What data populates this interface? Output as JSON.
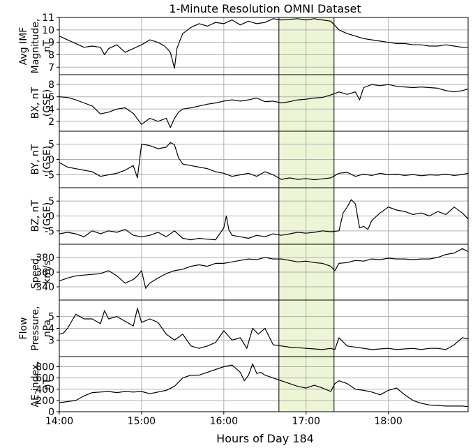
{
  "chart_data": {
    "type": "line",
    "title": "1-Minute Resolution OMNI Dataset",
    "xlabel": "Hours of Day 184",
    "xlim": [
      14.0,
      18.97
    ],
    "xticks": [
      14,
      15,
      16,
      17,
      18
    ],
    "xtick_labels": [
      "14:00",
      "15:00",
      "16:00",
      "17:00",
      "18:00"
    ],
    "grid": true,
    "highlight": {
      "x0": 16.67,
      "x1": 17.34,
      "color": "#eef5d6"
    },
    "panels": [
      {
        "ylabel": [
          "Avg IMF",
          "Magnitude,",
          "nT"
        ],
        "ylim": [
          6.4,
          11
        ],
        "yticks": [
          7,
          8,
          9,
          10,
          11
        ],
        "x": [
          14.0,
          14.1,
          14.2,
          14.3,
          14.4,
          14.5,
          14.55,
          14.6,
          14.7,
          14.8,
          14.9,
          15.0,
          15.1,
          15.2,
          15.28,
          15.35,
          15.4,
          15.43,
          15.47,
          15.5,
          15.6,
          15.7,
          15.8,
          15.9,
          16.0,
          16.1,
          16.2,
          16.3,
          16.4,
          16.5,
          16.6,
          16.7,
          16.8,
          16.9,
          17.0,
          17.1,
          17.2,
          17.3,
          17.4,
          17.5,
          17.6,
          17.7,
          17.8,
          17.9,
          18.0,
          18.1,
          18.2,
          18.3,
          18.4,
          18.5,
          18.6,
          18.7,
          18.8,
          18.9,
          18.97
        ],
        "y": [
          9.5,
          9.2,
          8.9,
          8.6,
          8.7,
          8.6,
          8.0,
          8.5,
          8.8,
          8.2,
          8.5,
          8.8,
          9.2,
          9.0,
          8.7,
          8.2,
          6.9,
          8.5,
          9.2,
          9.7,
          10.2,
          10.5,
          10.3,
          10.6,
          10.5,
          10.8,
          10.4,
          10.7,
          10.5,
          10.6,
          10.9,
          10.8,
          10.85,
          10.9,
          10.8,
          10.9,
          10.8,
          10.7,
          10.0,
          9.7,
          9.5,
          9.3,
          9.2,
          9.1,
          9.0,
          8.9,
          8.9,
          8.8,
          8.8,
          8.7,
          8.7,
          8.8,
          8.7,
          8.6,
          8.6
        ]
      },
      {
        "ylabel": [
          "BX, nT",
          "(GSE)"
        ],
        "ylim": [
          0.4,
          9.6
        ],
        "yticks": [
          2,
          4,
          6,
          8
        ],
        "x": [
          14.0,
          14.1,
          14.2,
          14.3,
          14.4,
          14.5,
          14.6,
          14.7,
          14.8,
          14.9,
          15.0,
          15.1,
          15.2,
          15.3,
          15.35,
          15.4,
          15.45,
          15.5,
          15.6,
          15.7,
          15.8,
          15.9,
          16.0,
          16.1,
          16.2,
          16.3,
          16.4,
          16.5,
          16.6,
          16.7,
          16.8,
          16.9,
          17.0,
          17.1,
          17.2,
          17.3,
          17.4,
          17.5,
          17.6,
          17.65,
          17.7,
          17.8,
          17.9,
          18.0,
          18.1,
          18.2,
          18.3,
          18.4,
          18.5,
          18.6,
          18.7,
          18.8,
          18.9,
          18.97
        ],
        "y": [
          6.0,
          5.9,
          5.5,
          5.0,
          4.5,
          3.2,
          3.5,
          4.0,
          4.2,
          3.3,
          1.5,
          2.5,
          2.0,
          2.5,
          1.0,
          2.5,
          3.5,
          4.0,
          4.2,
          4.5,
          4.8,
          5.0,
          5.3,
          5.5,
          5.3,
          5.5,
          5.8,
          5.2,
          5.3,
          5.0,
          5.2,
          5.5,
          5.6,
          5.8,
          5.9,
          6.3,
          6.8,
          6.4,
          6.8,
          5.5,
          7.5,
          8.0,
          7.8,
          8.0,
          7.7,
          7.6,
          7.5,
          7.6,
          7.5,
          7.4,
          7.0,
          6.8,
          7.0,
          7.3
        ]
      },
      {
        "ylabel": [
          "BY, nT",
          "(GSE)"
        ],
        "ylim": [
          -9.2,
          9.2
        ],
        "yticks": [
          -5,
          0,
          5
        ],
        "x": [
          14.0,
          14.1,
          14.2,
          14.3,
          14.4,
          14.5,
          14.6,
          14.7,
          14.8,
          14.9,
          14.95,
          15.0,
          15.1,
          15.2,
          15.3,
          15.35,
          15.4,
          15.45,
          15.5,
          15.6,
          15.7,
          15.8,
          15.9,
          16.0,
          16.1,
          16.2,
          16.3,
          16.4,
          16.5,
          16.6,
          16.7,
          16.8,
          16.9,
          17.0,
          17.1,
          17.2,
          17.3,
          17.4,
          17.5,
          17.6,
          17.7,
          17.8,
          17.9,
          18.0,
          18.1,
          18.2,
          18.3,
          18.4,
          18.5,
          18.6,
          18.7,
          18.8,
          18.9,
          18.97
        ],
        "y": [
          -1.0,
          -2.5,
          -3.0,
          -3.5,
          -4.0,
          -5.5,
          -5.0,
          -4.5,
          -3.5,
          -2.0,
          -6.0,
          5.0,
          4.5,
          3.5,
          4.0,
          5.5,
          4.8,
          0.5,
          -1.5,
          -2.0,
          -2.5,
          -3.0,
          -4.0,
          -4.5,
          -5.5,
          -5.0,
          -4.5,
          -5.5,
          -4.0,
          -5.0,
          -6.5,
          -6.0,
          -6.5,
          -6.2,
          -6.6,
          -6.3,
          -6.0,
          -4.5,
          -4.2,
          -5.5,
          -4.8,
          -5.2,
          -4.5,
          -5.0,
          -4.8,
          -5.2,
          -4.9,
          -5.3,
          -5.0,
          -5.1,
          -4.8,
          -5.2,
          -4.9,
          -4.5
        ]
      },
      {
        "ylabel": [
          "BZ, nT",
          "(GSE)"
        ],
        "ylim": [
          -9.5,
          9.5
        ],
        "yticks": [
          -5,
          0,
          5
        ],
        "x": [
          14.0,
          14.1,
          14.2,
          14.3,
          14.4,
          14.5,
          14.6,
          14.7,
          14.8,
          14.9,
          15.0,
          15.1,
          15.2,
          15.3,
          15.4,
          15.5,
          15.6,
          15.7,
          15.8,
          15.9,
          16.0,
          16.03,
          16.06,
          16.1,
          16.2,
          16.3,
          16.4,
          16.5,
          16.6,
          16.7,
          16.8,
          16.9,
          17.0,
          17.1,
          17.2,
          17.3,
          17.4,
          17.45,
          17.5,
          17.55,
          17.6,
          17.65,
          17.7,
          17.75,
          17.8,
          17.9,
          18.0,
          18.1,
          18.2,
          18.3,
          18.4,
          18.5,
          18.6,
          18.7,
          18.8,
          18.9,
          18.97
        ],
        "y": [
          -6.0,
          -5.5,
          -6.0,
          -7.0,
          -5.0,
          -6.0,
          -5.0,
          -5.5,
          -4.5,
          -6.5,
          -7.0,
          -6.5,
          -5.5,
          -7.0,
          -5.0,
          -7.5,
          -8.0,
          -7.5,
          -7.8,
          -8.0,
          -4.0,
          0.0,
          -4.5,
          -6.5,
          -7.0,
          -7.5,
          -6.5,
          -7.0,
          -6.0,
          -6.5,
          -6.0,
          -5.5,
          -5.8,
          -5.5,
          -5.0,
          -5.3,
          -5.0,
          1.0,
          3.0,
          5.5,
          4.0,
          -4.0,
          -3.5,
          -4.5,
          -1.5,
          1.0,
          3.0,
          2.0,
          1.5,
          0.5,
          1.0,
          0.0,
          1.5,
          0.5,
          3.0,
          1.0,
          -1.0
        ]
      },
      {
        "ylabel": [
          "Speed,",
          "km/s"
        ],
        "ylim": [
          322,
          398
        ],
        "yticks": [
          340,
          360,
          380
        ],
        "x": [
          14.0,
          14.1,
          14.2,
          14.3,
          14.4,
          14.5,
          14.6,
          14.7,
          14.8,
          14.9,
          14.95,
          15.0,
          15.05,
          15.1,
          15.2,
          15.3,
          15.4,
          15.5,
          15.6,
          15.7,
          15.8,
          15.9,
          16.0,
          16.1,
          16.2,
          16.3,
          16.4,
          16.5,
          16.6,
          16.7,
          16.8,
          16.9,
          17.0,
          17.1,
          17.2,
          17.3,
          17.35,
          17.4,
          17.5,
          17.6,
          17.7,
          17.8,
          17.9,
          18.0,
          18.1,
          18.2,
          18.3,
          18.4,
          18.5,
          18.6,
          18.7,
          18.8,
          18.9,
          18.97
        ],
        "y": [
          348,
          352,
          355,
          356,
          357,
          358,
          362,
          355,
          345,
          350,
          355,
          362,
          338,
          345,
          352,
          358,
          362,
          364,
          368,
          370,
          368,
          372,
          372,
          374,
          376,
          378,
          377,
          380,
          378,
          378,
          376,
          374,
          375,
          373,
          372,
          368,
          362,
          372,
          373,
          376,
          375,
          378,
          377,
          379,
          378,
          378,
          377,
          378,
          378,
          380,
          384,
          386,
          392,
          388
        ]
      },
      {
        "ylabel": [
          "Flow",
          "Pressure,",
          "nPa"
        ],
        "ylim": [
          1.6,
          6.4
        ],
        "yticks": [
          3,
          4,
          5
        ],
        "x": [
          14.0,
          14.05,
          14.1,
          14.2,
          14.3,
          14.4,
          14.5,
          14.55,
          14.6,
          14.7,
          14.8,
          14.9,
          14.95,
          15.0,
          15.1,
          15.2,
          15.3,
          15.4,
          15.5,
          15.6,
          15.7,
          15.8,
          15.9,
          16.0,
          16.1,
          16.2,
          16.28,
          16.35,
          16.42,
          16.5,
          16.6,
          16.7,
          16.8,
          16.9,
          17.0,
          17.1,
          17.2,
          17.3,
          17.35,
          17.4,
          17.5,
          17.6,
          17.7,
          17.8,
          17.9,
          18.0,
          18.1,
          18.2,
          18.3,
          18.4,
          18.5,
          18.6,
          18.7,
          18.8,
          18.9,
          18.97
        ],
        "y": [
          3.5,
          3.6,
          4.0,
          5.2,
          4.8,
          4.8,
          4.4,
          5.5,
          4.8,
          5.0,
          4.6,
          4.2,
          5.7,
          4.5,
          4.8,
          4.5,
          3.5,
          3.0,
          3.5,
          2.5,
          2.3,
          2.5,
          2.8,
          3.8,
          3.0,
          3.2,
          2.3,
          4.0,
          3.5,
          4.0,
          2.6,
          2.5,
          2.4,
          2.35,
          2.3,
          2.25,
          2.2,
          2.3,
          2.2,
          3.2,
          2.5,
          2.4,
          2.3,
          2.2,
          2.25,
          2.3,
          2.2,
          2.25,
          2.3,
          2.2,
          2.3,
          2.3,
          2.2,
          2.6,
          3.2,
          3.1
        ]
      },
      {
        "ylabel": [
          "AE-index,",
          "nT"
        ],
        "ylim": [
          0,
          980
        ],
        "yticks": [
          0,
          200,
          400,
          600,
          800
        ],
        "x": [
          14.0,
          14.1,
          14.2,
          14.3,
          14.4,
          14.5,
          14.6,
          14.7,
          14.8,
          14.9,
          15.0,
          15.1,
          15.2,
          15.3,
          15.4,
          15.5,
          15.6,
          15.7,
          15.8,
          15.9,
          16.0,
          16.1,
          16.2,
          16.25,
          16.3,
          16.35,
          16.4,
          16.45,
          16.5,
          16.6,
          16.7,
          16.8,
          16.9,
          17.0,
          17.1,
          17.2,
          17.3,
          17.35,
          17.4,
          17.5,
          17.6,
          17.7,
          17.8,
          17.9,
          18.0,
          18.1,
          18.2,
          18.3,
          18.4,
          18.5,
          18.6,
          18.7,
          18.8,
          18.9,
          18.97
        ],
        "y": [
          160,
          180,
          200,
          280,
          340,
          350,
          360,
          340,
          360,
          350,
          360,
          320,
          350,
          380,
          450,
          600,
          650,
          650,
          700,
          750,
          800,
          830,
          700,
          550,
          650,
          850,
          680,
          700,
          650,
          600,
          550,
          500,
          450,
          420,
          470,
          420,
          360,
          500,
          550,
          500,
          400,
          380,
          350,
          300,
          380,
          420,
          300,
          200,
          150,
          120,
          110,
          100,
          100,
          100,
          90
        ]
      }
    ]
  }
}
